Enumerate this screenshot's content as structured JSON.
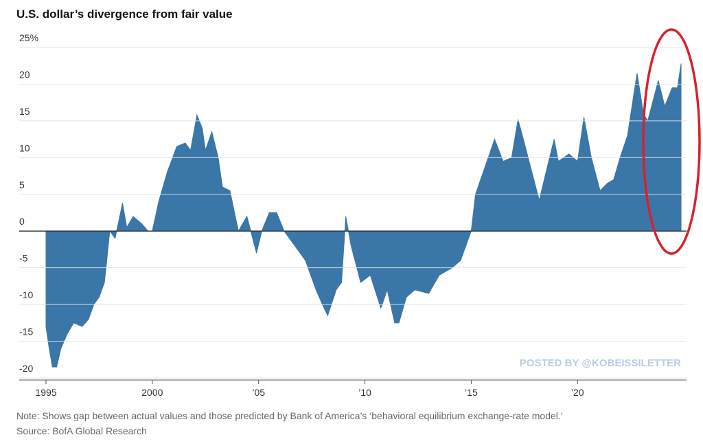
{
  "chart_data": {
    "type": "area",
    "title": "U.S. dollar’s divergence from fair value",
    "note": "Note: Shows gap between actual values and those predicted by Bank of America’s ‘behavioral equilibrium exchange-rate model.’",
    "source": "Source: BofA Global Research",
    "watermark": "POSTED BY @KOBEISSILETTER",
    "color": "#3a77a8",
    "grid": true,
    "xlim": [
      1995,
      2024.9
    ],
    "ylim": [
      -20,
      25
    ],
    "xticks": [
      1995,
      2000,
      {
        "value": 2005,
        "label": "’05"
      },
      {
        "value": 2010,
        "label": "’10"
      },
      {
        "value": 2015,
        "label": "’15"
      },
      {
        "value": 2020,
        "label": "’20"
      }
    ],
    "yticks": [
      -20,
      -15,
      -10,
      -5,
      0,
      5,
      10,
      15,
      20,
      {
        "value": 25,
        "label": "25%"
      }
    ],
    "x": [
      1995,
      1995.15,
      1995.3,
      1995.5,
      1995.7,
      1996,
      1996.3,
      1996.7,
      1997,
      1997.25,
      1997.5,
      1997.75,
      1998,
      1998.25,
      1998.6,
      1998.8,
      1999.1,
      1999.5,
      1999.8,
      2000,
      2000.3,
      2000.7,
      2001.15,
      2001.55,
      2001.8,
      2002.1,
      2002.35,
      2002.5,
      2002.8,
      2003.1,
      2003.3,
      2003.65,
      2004.05,
      2004.45,
      2004.9,
      2005.15,
      2005.5,
      2005.85,
      2006.2,
      2006.7,
      2007.2,
      2007.7,
      2008,
      2008.25,
      2008.65,
      2008.9,
      2009.1,
      2009.35,
      2009.8,
      2010.25,
      2010.75,
      2011.05,
      2011.4,
      2011.6,
      2011.95,
      2012.35,
      2013,
      2013.5,
      2014.1,
      2014.5,
      2015,
      2015.2,
      2015.8,
      2016.1,
      2016.5,
      2016.9,
      2017.2,
      2017.5,
      2017.9,
      2018.2,
      2018.6,
      2018.9,
      2019.1,
      2019.6,
      2020,
      2020.3,
      2020.65,
      2021.06,
      2021.4,
      2021.7,
      2022,
      2022.35,
      2022.8,
      2023.1,
      2023.3,
      2023.8,
      2024.1,
      2024.45,
      2024.7,
      2024.87
    ],
    "y": [
      -13,
      -16,
      -18.5,
      -18.5,
      -16,
      -14,
      -12.5,
      -13,
      -12,
      -10,
      -9,
      -7,
      0,
      -1,
      3.8,
      0.5,
      2,
      1,
      0,
      0,
      4,
      8,
      11.5,
      12,
      11,
      15.8,
      14,
      11,
      13.5,
      10,
      6,
      5.5,
      0,
      2,
      -3,
      0,
      2.5,
      2.5,
      0,
      -2,
      -4,
      -8,
      -10,
      -11.5,
      -8,
      -7,
      2,
      -2,
      -7,
      -6,
      -10.5,
      -8,
      -12.5,
      -12.5,
      -9,
      -8,
      -8.5,
      -6,
      -5,
      -4,
      0,
      5,
      10,
      12.5,
      9.5,
      10,
      15.2,
      12,
      7.5,
      4.2,
      9,
      12.5,
      9.5,
      10.5,
      9.5,
      15.5,
      10,
      5.5,
      6.5,
      7,
      10,
      13,
      21.5,
      16,
      15,
      20.5,
      17,
      19.5,
      19.5,
      22.8
    ]
  }
}
